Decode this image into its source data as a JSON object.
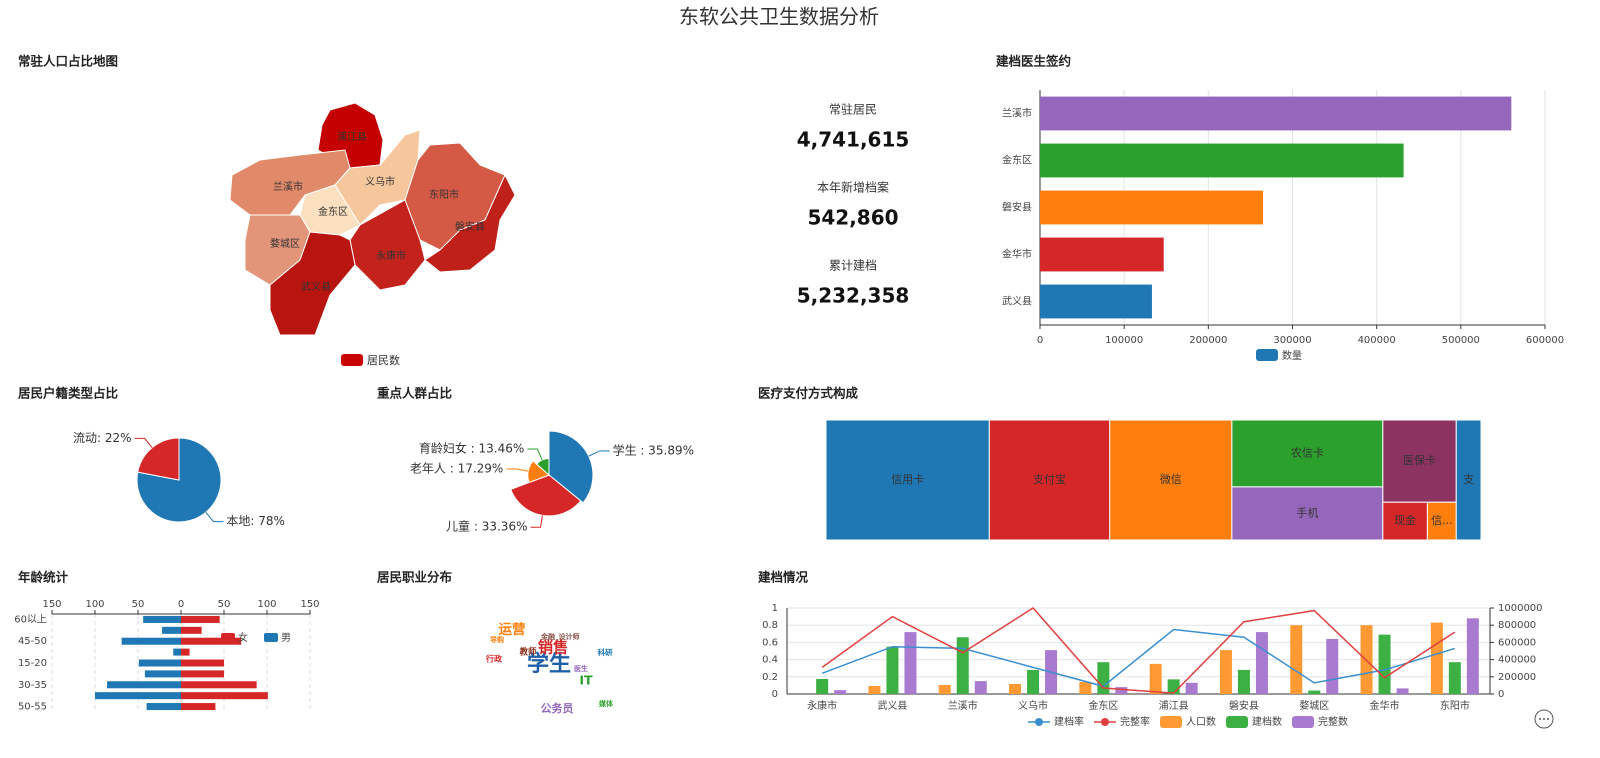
{
  "header": {
    "title": "东软公共卫生数据分析"
  },
  "map": {
    "title": "常驻人口占比地图",
    "legend": "居民数",
    "legend_color": "#c80000",
    "regions": [
      {
        "name": "浦江县",
        "color": "#c40000"
      },
      {
        "name": "兰溪市",
        "color": "#e08a6a"
      },
      {
        "name": "义乌市",
        "color": "#f6c79d"
      },
      {
        "name": "金东区",
        "color": "#fbe0c0"
      },
      {
        "name": "东阳市",
        "color": "#d45a45"
      },
      {
        "name": "磐安县",
        "color": "#c0201a"
      },
      {
        "name": "婺城区",
        "color": "#e3957a"
      },
      {
        "name": "永康市",
        "color": "#c3231c"
      },
      {
        "name": "武义县",
        "color": "#b81410"
      }
    ]
  },
  "stats": [
    {
      "label": "常驻居民",
      "value": "4,741,615"
    },
    {
      "label": "本年新增档案",
      "value": "542,860"
    },
    {
      "label": "累计建档",
      "value": "5,232,358"
    }
  ],
  "chart_data": [
    {
      "type": "bar",
      "orientation": "horizontal",
      "title": "建档医生签约",
      "categories": [
        "兰溪市",
        "金东区",
        "磐安县",
        "金华市",
        "武义县"
      ],
      "series": [
        {
          "name": "数量",
          "color": "#1f77b4",
          "values": [
            560000,
            432000,
            265000,
            147000,
            133000
          ],
          "colors": [
            "#9467bd",
            "#2ca02c",
            "#ff7f0e",
            "#d62728",
            "#1f77b4"
          ]
        }
      ],
      "xlim": [
        0,
        600000
      ],
      "xticks": [
        0,
        100000,
        200000,
        300000,
        400000,
        500000,
        600000
      ],
      "grid": true
    },
    {
      "type": "pie",
      "title": "居民户籍类型占比",
      "categories": [
        "本地",
        "流动"
      ],
      "values": [
        78,
        22
      ],
      "value_labels": [
        "本地: 78%",
        "流动: 22%"
      ],
      "colors": [
        "#1f77b4",
        "#d62728"
      ]
    },
    {
      "type": "pie",
      "rose": true,
      "title": "重点人群占比",
      "categories": [
        "学生",
        "儿童",
        "老年人",
        "育龄妇女"
      ],
      "values": [
        35.89,
        33.36,
        17.29,
        13.46
      ],
      "value_labels": [
        "学生 : 35.89%",
        "儿童 : 33.36%",
        "老年人 : 17.29%",
        "育龄妇女 : 13.46%"
      ],
      "colors": [
        "#1f77b4",
        "#d62728",
        "#ff7f0e",
        "#2ca02c"
      ]
    },
    {
      "type": "treemap",
      "title": "医疗支付方式构成",
      "categories": [
        "信用卡",
        "支付宝",
        "微信",
        "农信卡",
        "手机",
        "医保卡",
        "现金",
        "信...",
        "支"
      ],
      "values": [
        198,
        146,
        148,
        102,
        81,
        61,
        17,
        11,
        30
      ],
      "colors": [
        "#1f77b4",
        "#d62728",
        "#ff7f0e",
        "#2ca02c",
        "#9467bd",
        "#8c3362",
        "#d62728",
        "#ff7f0e",
        "#1f77b4"
      ]
    },
    {
      "type": "pyramid",
      "title": "年龄统计",
      "categories": [
        "60以上",
        null,
        "45-50",
        null,
        "15-20",
        null,
        "30-35",
        null,
        "50-55"
      ],
      "series": [
        {
          "name": "男",
          "color": "#1f77b4",
          "values": [
            -44,
            -22,
            -69,
            -9,
            -49,
            -42,
            -86,
            -100,
            -40
          ]
        },
        {
          "name": "女",
          "color": "#d62728",
          "values": [
            45,
            24,
            70,
            10,
            50,
            50,
            88,
            101,
            40
          ]
        }
      ],
      "xlim": [
        -150,
        150
      ],
      "xticks": [
        {
          "value": -150,
          "label": "150"
        },
        {
          "value": -100,
          "label": "100"
        },
        {
          "value": -50,
          "label": "50"
        },
        0,
        50,
        100,
        150
      ],
      "grid": true
    },
    {
      "type": "wordcloud",
      "title": "居民职业分布",
      "categories": [
        "学生",
        "销售",
        "运营",
        "IT",
        "公务员",
        "教师",
        "行政",
        "导购",
        "金融",
        "设计师",
        "科研",
        "医生",
        "媒体"
      ],
      "values": [
        100,
        60,
        50,
        45,
        35,
        20,
        18,
        12,
        12,
        12,
        15,
        12,
        12
      ],
      "colors": [
        "#1f5fa8",
        "#d62728",
        "#ff7f0e",
        "#2ca02c",
        "#9467bd",
        "#8c2d19",
        "#d62728",
        "#ff7f0e",
        "#8c564b",
        "#8c564b",
        "#1f77b4",
        "#9467bd",
        "#2ca02c"
      ]
    },
    {
      "type": "combo",
      "title": "建档情况",
      "categories": [
        "永康市",
        "武义县",
        "兰溪市",
        "义乌市",
        "金东区",
        "浦江县",
        "磐安县",
        "婺城区",
        "金华市",
        "东阳市"
      ],
      "series": [
        {
          "name": "建档率",
          "type": "line",
          "color": "#3a8fd0",
          "values": [
            0.24,
            0.55,
            0.53,
            0.31,
            0.09,
            0.75,
            0.66,
            0.13,
            0.28,
            0.53
          ]
        },
        {
          "name": "完整率",
          "type": "line",
          "color": "#e04040",
          "values": [
            0.31,
            0.9,
            0.48,
            1,
            0.07,
            0.01,
            0.84,
            0.97,
            0.19,
            0.72
          ]
        },
        {
          "name": "人口数",
          "type": "bar",
          "axis": "y2",
          "color": "#ff9933",
          "values": [
            0,
            93000,
            105000,
            116000,
            140000,
            350000,
            510000,
            800000,
            800000,
            830000
          ]
        },
        {
          "name": "建档数",
          "type": "bar",
          "axis": "y2",
          "color": "#3cb043",
          "values": [
            175000,
            550000,
            660000,
            280000,
            370000,
            170000,
            280000,
            40000,
            690000,
            370000
          ]
        },
        {
          "name": "完整数",
          "type": "bar",
          "axis": "y2",
          "color": "#a87ad0",
          "values": [
            45000,
            720000,
            150000,
            510000,
            80000,
            130000,
            720000,
            640000,
            65000,
            880000
          ]
        }
      ],
      "ylim": [
        0,
        1
      ],
      "yticks": [
        0,
        0.2,
        0.4,
        0.6,
        0.8,
        1
      ],
      "y2lim": [
        0,
        1000000
      ],
      "y2ticks": [
        0,
        200000,
        400000,
        600000,
        800000,
        1000000
      ],
      "grid": true
    }
  ]
}
